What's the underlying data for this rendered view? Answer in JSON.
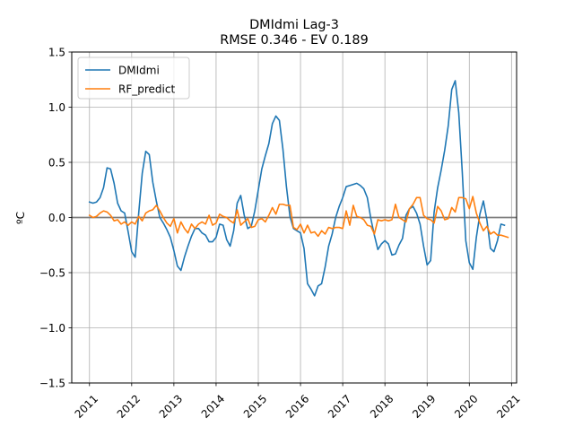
{
  "chart_data": {
    "type": "line",
    "title": "DMIdmi Lag-3",
    "subtitle": "RMSE 0.346 - EV 0.189",
    "xlabel": "",
    "ylabel": "ºC",
    "xlim": [
      2010.58,
      2021.12
    ],
    "ylim": [
      -1.5,
      1.5
    ],
    "x_ticks": [
      2011,
      2012,
      2013,
      2014,
      2015,
      2016,
      2017,
      2018,
      2019,
      2020,
      2021
    ],
    "x_tick_labels": [
      "2011",
      "2012",
      "2013",
      "2014",
      "2015",
      "2016",
      "2017",
      "2018",
      "2019",
      "2020",
      "2021"
    ],
    "y_ticks": [
      -1.5,
      -1.0,
      -0.5,
      0.0,
      0.5,
      1.0,
      1.5
    ],
    "y_tick_labels": [
      "−1.5",
      "−1.0",
      "−0.5",
      "0.0",
      "0.5",
      "1.0",
      "1.5"
    ],
    "grid": true,
    "zero_line": true,
    "legend_position": "upper-left",
    "x_start": 2011.0,
    "x_step": 0.08333,
    "series": [
      {
        "name": "DMIdmi",
        "color": "#1f77b4",
        "values": [
          0.14,
          0.13,
          0.14,
          0.18,
          0.27,
          0.45,
          0.44,
          0.31,
          0.13,
          0.06,
          0.04,
          -0.13,
          -0.31,
          -0.36,
          0.04,
          0.4,
          0.6,
          0.57,
          0.32,
          0.15,
          0.0,
          -0.05,
          -0.11,
          -0.18,
          -0.3,
          -0.44,
          -0.48,
          -0.36,
          -0.26,
          -0.17,
          -0.1,
          -0.1,
          -0.14,
          -0.16,
          -0.22,
          -0.22,
          -0.18,
          -0.06,
          -0.07,
          -0.2,
          -0.26,
          -0.12,
          0.13,
          0.2,
          0.02,
          -0.1,
          -0.08,
          0.06,
          0.25,
          0.44,
          0.56,
          0.67,
          0.85,
          0.92,
          0.88,
          0.62,
          0.28,
          0.01,
          -0.1,
          -0.12,
          -0.14,
          -0.28,
          -0.6,
          -0.65,
          -0.71,
          -0.62,
          -0.6,
          -0.45,
          -0.26,
          -0.15,
          0.0,
          0.1,
          0.18,
          0.28,
          0.29,
          0.3,
          0.31,
          0.29,
          0.26,
          0.18,
          -0.01,
          -0.16,
          -0.29,
          -0.24,
          -0.21,
          -0.24,
          -0.34,
          -0.33,
          -0.25,
          -0.19,
          0.02,
          0.08,
          0.1,
          0.04,
          -0.06,
          -0.26,
          -0.43,
          -0.39,
          0.05,
          0.27,
          0.43,
          0.61,
          0.83,
          1.16,
          1.24,
          0.95,
          0.41,
          -0.21,
          -0.41,
          -0.47,
          -0.18,
          0.03,
          0.15,
          -0.02,
          -0.28,
          -0.31,
          -0.21,
          -0.06,
          -0.07
        ]
      },
      {
        "name": "RF_predict",
        "color": "#ff7f0e",
        "values": [
          0.02,
          0.0,
          0.01,
          0.04,
          0.06,
          0.05,
          0.02,
          -0.03,
          -0.02,
          -0.06,
          -0.04,
          -0.07,
          -0.04,
          -0.06,
          0.01,
          -0.03,
          0.04,
          0.06,
          0.07,
          0.11,
          0.06,
          0.0,
          -0.05,
          -0.08,
          -0.01,
          -0.14,
          -0.04,
          -0.1,
          -0.14,
          -0.06,
          -0.1,
          -0.06,
          -0.04,
          -0.06,
          0.02,
          -0.07,
          -0.05,
          0.03,
          0.01,
          0.0,
          -0.03,
          -0.05,
          0.07,
          -0.07,
          -0.04,
          -0.01,
          -0.09,
          -0.08,
          -0.02,
          -0.01,
          -0.04,
          0.02,
          0.09,
          0.03,
          0.12,
          0.12,
          0.11,
          0.11,
          -0.09,
          -0.11,
          -0.06,
          -0.14,
          -0.07,
          -0.14,
          -0.13,
          -0.17,
          -0.12,
          -0.15,
          -0.09,
          -0.1,
          -0.09,
          -0.09,
          -0.1,
          0.06,
          -0.07,
          0.11,
          0.01,
          0.0,
          -0.02,
          -0.07,
          -0.08,
          -0.15,
          -0.02,
          -0.03,
          -0.02,
          -0.03,
          -0.02,
          0.12,
          0.0,
          -0.02,
          -0.04,
          0.08,
          0.12,
          0.18,
          0.18,
          0.02,
          -0.01,
          -0.02,
          -0.05,
          0.1,
          0.06,
          -0.02,
          -0.01,
          0.09,
          0.05,
          0.18,
          0.18,
          0.17,
          0.08,
          0.19,
          0.04,
          -0.05,
          -0.12,
          -0.08,
          -0.15,
          -0.13,
          -0.16,
          -0.16,
          -0.17,
          -0.18
        ]
      }
    ]
  }
}
